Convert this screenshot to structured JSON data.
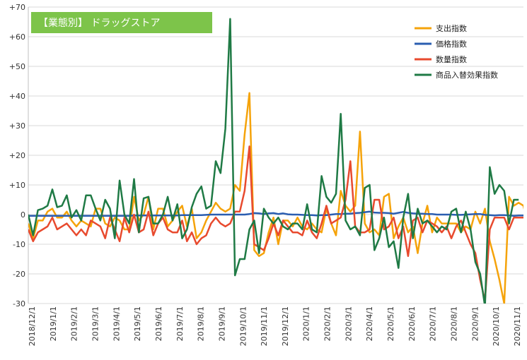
{
  "chart_data": {
    "type": "line",
    "title": "【業態別】 ドラッグストア",
    "title_bg": "#7dc44a",
    "xlabel": "",
    "ylabel": "",
    "ylim": [
      -30,
      70
    ],
    "yticks": [
      -30,
      -20,
      -10,
      0,
      10,
      20,
      30,
      40,
      50,
      60,
      70
    ],
    "ytick_labels": [
      "-30",
      "-20",
      "-10",
      "0",
      "+10",
      "+20",
      "+30",
      "+40",
      "+50",
      "+60",
      "+70"
    ],
    "grid": "horizontal",
    "legend_position": "top-right",
    "x_tick_labels": [
      "2018/12/1",
      "2019/1/1",
      "2019/2/1",
      "2019/3/1",
      "2019/4/1",
      "2019/5/1",
      "2019/6/1",
      "2019/7/1",
      "2019/8/1",
      "2019/9/1",
      "2019/10/1",
      "2019/11/1",
      "2019/12/1",
      "2020/1/1",
      "2020/2/1",
      "2020/3/1",
      "2020/4/1",
      "2020/5/1",
      "2020/6/1",
      "2020/7/1",
      "2020/8/1",
      "2020/9/1",
      "2020/10/1",
      "2020/11/1"
    ],
    "x_range": [
      0,
      103
    ],
    "series": [
      {
        "name": "支出指数",
        "color": "#f5a30a",
        "values": [
          -3,
          -8,
          -2,
          -2,
          1,
          2,
          -1,
          -1,
          1,
          -2,
          -4,
          -2,
          -3,
          -4,
          2,
          2,
          -3,
          -4,
          -1,
          -2,
          -5,
          -5,
          6,
          -2,
          0,
          6,
          -5,
          2,
          2,
          -4,
          -2,
          1,
          3,
          -4,
          2,
          -8,
          -6,
          -2,
          1,
          4,
          2,
          1,
          2,
          10,
          8,
          27,
          41,
          -12,
          -14,
          -13,
          -6,
          -1,
          -10,
          -2,
          -2,
          -4,
          -1,
          -4,
          -5,
          -3,
          -5,
          -6,
          2,
          -3,
          -7,
          8,
          3,
          1,
          3,
          28,
          -3,
          -6,
          -5,
          -7,
          6,
          7,
          -8,
          -4,
          -1,
          -6,
          -4,
          -13,
          -3,
          3,
          -6,
          -1,
          -3,
          -3,
          -3,
          -3,
          -6,
          -4,
          -5,
          1,
          -3,
          2,
          -9,
          -15,
          -22,
          -30,
          6,
          3,
          4,
          3,
          -4,
          2
        ]
      },
      {
        "name": "価格指数",
        "color": "#2a5db0",
        "values": [
          -0.4,
          -0.4,
          -0.4,
          -0.4,
          -0.4,
          -0.4,
          -0.4,
          -0.4,
          -0.4,
          -0.4,
          -0.4,
          -0.4,
          -0.4,
          -0.4,
          -0.4,
          -0.4,
          -0.4,
          -0.4,
          -0.4,
          -0.4,
          -0.4,
          -0.4,
          -0.3,
          -0.3,
          -0.3,
          -0.3,
          -0.3,
          -0.3,
          -0.3,
          -0.3,
          -0.3,
          -0.3,
          -0.2,
          -0.2,
          -0.2,
          -0.2,
          -0.2,
          -0.1,
          0,
          0,
          0,
          0,
          0,
          0,
          0,
          0,
          0.2,
          0.5,
          0.4,
          0.2,
          0.4,
          0.5,
          0.2,
          0.4,
          0.1,
          0,
          0,
          -0.1,
          -0.2,
          -0.2,
          -0.3,
          -0.2,
          -0.2,
          0,
          0.2,
          0.2,
          0.3,
          0.3,
          0.5,
          0.6,
          0.8,
          1.0,
          0.7,
          0.6,
          0.6,
          0.5,
          0.3,
          0.6,
          0.9,
          0.6,
          0.4,
          0.3,
          0.3,
          0.2,
          0.2,
          0,
          0,
          0,
          0,
          -0.1,
          -0.1,
          0,
          0.1,
          0.2,
          0.2,
          -0.1,
          -0.2,
          -0.3,
          -0.2,
          -0.2,
          -0.3,
          -0.4,
          -0.3,
          -0.3,
          -0.3,
          -0.3
        ]
      },
      {
        "name": "数量指数",
        "color": "#e84a2e",
        "values": [
          -5,
          -9,
          -6,
          -5,
          -4,
          -1,
          -5,
          -4,
          -3,
          -5,
          -7,
          -5,
          -7,
          -2,
          -3,
          -4,
          -8,
          -1,
          -5,
          -9,
          -1,
          -6,
          0,
          -6,
          -5,
          1,
          -7,
          -3,
          -1,
          -5,
          -6,
          -6,
          -2,
          -9,
          -6,
          -10,
          -8,
          -7,
          -3,
          -1,
          -3,
          -4,
          -3,
          1,
          1,
          8,
          23,
          -10,
          -11,
          -12,
          -8,
          -3,
          -7,
          -2,
          -4,
          -6,
          -6,
          -7,
          -2,
          -6,
          -8,
          -3,
          3,
          -3,
          -2,
          -1,
          5,
          18,
          -4,
          -6,
          -6,
          -5,
          5,
          5,
          -5,
          -4,
          -1,
          -8,
          -4,
          -14,
          -2,
          -1,
          -6,
          -2,
          -3,
          -4,
          -6,
          -4,
          -8,
          -4,
          -2,
          -6,
          -10,
          -13,
          -22,
          -29,
          -5,
          -1,
          -1,
          -1,
          -5,
          -1,
          -1,
          -1
        ]
      },
      {
        "name": "商品入替効果指数",
        "color": "#1f7a45",
        "values": [
          0,
          -7,
          1.5,
          2,
          3,
          8.5,
          2.5,
          3,
          6.5,
          -1,
          1.5,
          -2,
          6.5,
          6.5,
          2,
          -2,
          5,
          2,
          -8,
          11.5,
          0,
          -3,
          12,
          -6,
          5.5,
          6,
          -3,
          -3,
          0,
          6,
          -2,
          3.5,
          -8,
          -5,
          2.5,
          7,
          9.5,
          2,
          3,
          18,
          14,
          29,
          66,
          -20.5,
          -15,
          -15,
          -5,
          -2,
          -13,
          2,
          -1,
          -3,
          -1,
          -4,
          -5,
          -3,
          -3,
          -5,
          3.5,
          -5,
          -6,
          13,
          6,
          4,
          7,
          34,
          -2,
          -5,
          -4,
          -7,
          9,
          10,
          -12,
          -8,
          -1,
          -11,
          -9,
          -18,
          -1,
          7,
          -8,
          2,
          -3,
          -2,
          -4,
          -6,
          -4,
          -5,
          1,
          2,
          -6,
          1,
          -5,
          -16,
          -20,
          -31,
          16,
          7,
          10,
          8,
          -3,
          5,
          5
        ]
      }
    ]
  }
}
